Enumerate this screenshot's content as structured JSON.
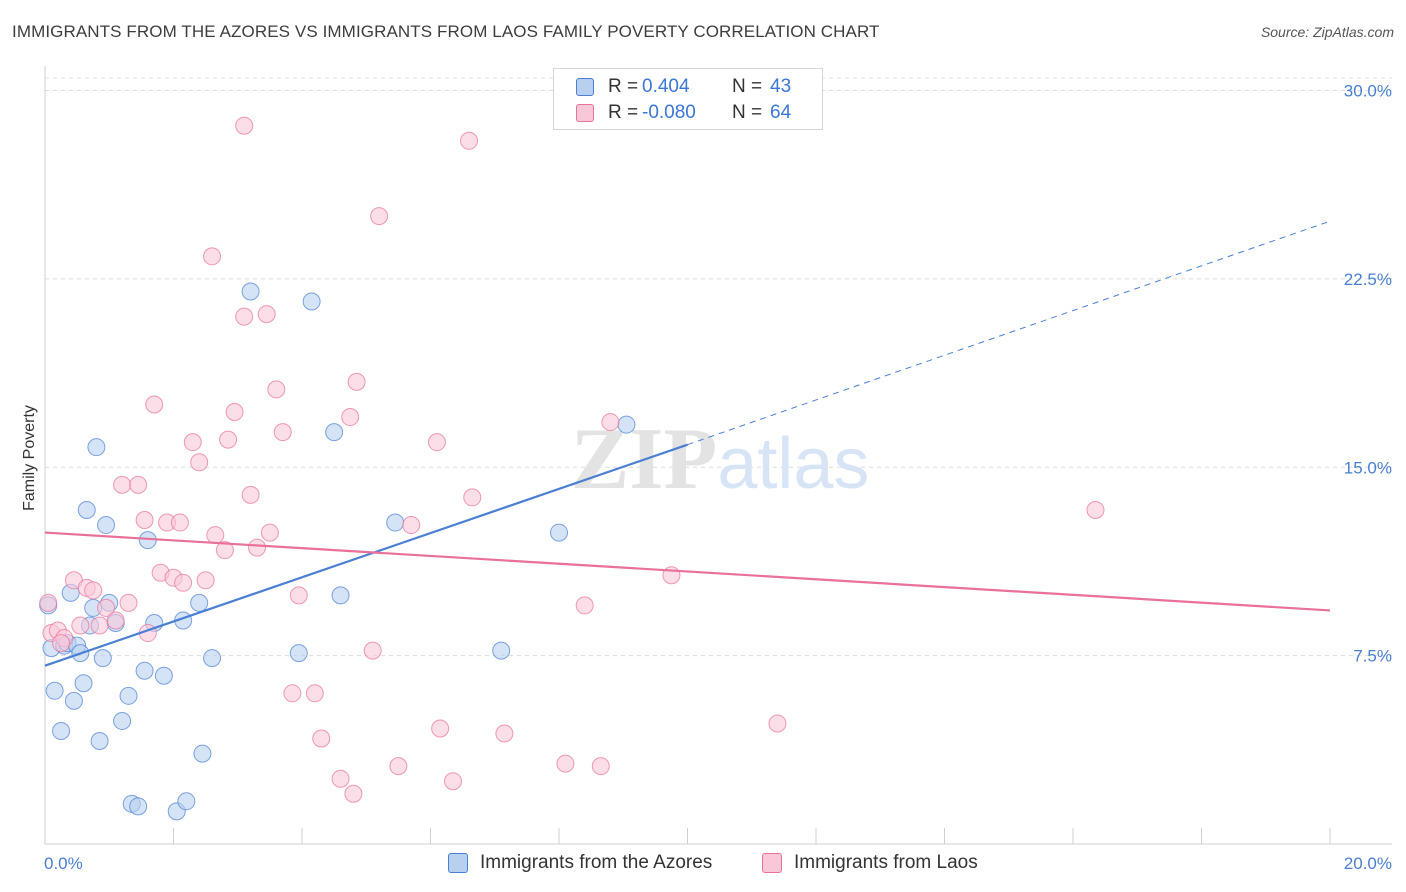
{
  "title": "IMMIGRANTS FROM THE AZORES VS IMMIGRANTS FROM LAOS FAMILY POVERTY CORRELATION CHART",
  "source": "Source: ZipAtlas.com",
  "colors": {
    "blue": "#4a7fd4",
    "blue_fill": "#b8d0f0",
    "pink": "#e8709a",
    "pink_fill": "#f8c8d8",
    "tick": "#4a7fcf"
  },
  "legend": {
    "rows": [
      {
        "r_label": "R =",
        "r_value": "0.404",
        "n_label": "N =",
        "n_value": "43"
      },
      {
        "r_label": "R =",
        "r_value": "-0.080",
        "n_label": "N =",
        "n_value": "64"
      }
    ]
  },
  "bottom_legend": [
    "Immigrants from the Azores",
    "Immigrants from Laos"
  ],
  "watermark": "ZIPatlas",
  "chart_data": {
    "type": "scatter",
    "title": "IMMIGRANTS FROM THE AZORES VS IMMIGRANTS FROM LAOS FAMILY POVERTY CORRELATION CHART",
    "xlabel": "",
    "ylabel": "Family Poverty",
    "xlim": [
      0,
      20
    ],
    "ylim": [
      0,
      30.5
    ],
    "x_tick_labels": [
      "0.0%",
      "20.0%"
    ],
    "y_ticks": [
      7.5,
      15.0,
      22.5,
      30.0
    ],
    "y_tick_labels": [
      "7.5%",
      "15.0%",
      "22.5%",
      "30.0%"
    ],
    "grid": true,
    "series": [
      {
        "name": "Immigrants from the Azores",
        "points": [
          [
            0.05,
            9.5
          ],
          [
            0.1,
            7.8
          ],
          [
            0.15,
            6.1
          ],
          [
            0.25,
            4.5
          ],
          [
            0.3,
            7.9
          ],
          [
            0.35,
            8.0
          ],
          [
            0.4,
            10.0
          ],
          [
            0.45,
            5.7
          ],
          [
            0.5,
            7.9
          ],
          [
            0.55,
            7.6
          ],
          [
            0.6,
            6.4
          ],
          [
            0.65,
            13.3
          ],
          [
            0.7,
            8.7
          ],
          [
            0.75,
            9.4
          ],
          [
            0.8,
            15.8
          ],
          [
            0.85,
            4.1
          ],
          [
            0.9,
            7.4
          ],
          [
            0.95,
            12.7
          ],
          [
            1.0,
            9.6
          ],
          [
            1.1,
            8.8
          ],
          [
            1.2,
            4.9
          ],
          [
            1.3,
            5.9
          ],
          [
            1.35,
            1.6
          ],
          [
            1.45,
            1.5
          ],
          [
            1.55,
            6.9
          ],
          [
            1.6,
            12.1
          ],
          [
            1.7,
            8.8
          ],
          [
            1.85,
            6.7
          ],
          [
            2.05,
            1.3
          ],
          [
            2.15,
            8.9
          ],
          [
            2.2,
            1.7
          ],
          [
            2.4,
            9.6
          ],
          [
            2.45,
            3.6
          ],
          [
            2.6,
            7.4
          ],
          [
            3.2,
            22.0
          ],
          [
            3.95,
            7.6
          ],
          [
            4.15,
            21.6
          ],
          [
            4.5,
            16.4
          ],
          [
            4.6,
            9.9
          ],
          [
            5.45,
            12.8
          ],
          [
            7.1,
            7.7
          ],
          [
            8.0,
            12.4
          ],
          [
            9.05,
            16.7
          ]
        ],
        "trend": {
          "x0": 0.0,
          "y0": 7.1,
          "x1": 10.0,
          "y1": 15.9,
          "dashed_to_x": 20.0,
          "dashed_to_y": 24.8
        }
      },
      {
        "name": "Immigrants from Laos",
        "points": [
          [
            0.05,
            9.6
          ],
          [
            0.1,
            8.4
          ],
          [
            0.2,
            8.5
          ],
          [
            0.3,
            8.2
          ],
          [
            0.45,
            10.5
          ],
          [
            0.55,
            8.7
          ],
          [
            0.65,
            10.2
          ],
          [
            0.75,
            10.1
          ],
          [
            0.85,
            8.7
          ],
          [
            0.95,
            9.4
          ],
          [
            1.1,
            8.9
          ],
          [
            1.2,
            14.3
          ],
          [
            1.3,
            9.6
          ],
          [
            1.45,
            14.3
          ],
          [
            1.55,
            12.9
          ],
          [
            1.6,
            8.4
          ],
          [
            1.7,
            17.5
          ],
          [
            1.8,
            10.8
          ],
          [
            1.9,
            12.8
          ],
          [
            2.0,
            10.6
          ],
          [
            2.1,
            12.8
          ],
          [
            2.15,
            10.4
          ],
          [
            2.3,
            16.0
          ],
          [
            2.4,
            15.2
          ],
          [
            2.5,
            10.5
          ],
          [
            2.6,
            23.4
          ],
          [
            2.65,
            12.3
          ],
          [
            2.8,
            11.7
          ],
          [
            2.85,
            16.1
          ],
          [
            2.95,
            17.2
          ],
          [
            3.1,
            28.6
          ],
          [
            3.1,
            21.0
          ],
          [
            3.2,
            13.9
          ],
          [
            3.3,
            11.8
          ],
          [
            3.45,
            21.1
          ],
          [
            3.5,
            12.4
          ],
          [
            3.6,
            18.1
          ],
          [
            3.7,
            16.4
          ],
          [
            3.85,
            6.0
          ],
          [
            3.95,
            9.9
          ],
          [
            4.2,
            6.0
          ],
          [
            4.3,
            4.2
          ],
          [
            4.6,
            2.6
          ],
          [
            4.75,
            17.0
          ],
          [
            4.8,
            2.0
          ],
          [
            4.85,
            18.4
          ],
          [
            5.1,
            7.7
          ],
          [
            5.2,
            25.0
          ],
          [
            5.5,
            3.1
          ],
          [
            5.7,
            12.7
          ],
          [
            6.1,
            16.0
          ],
          [
            6.15,
            4.6
          ],
          [
            6.35,
            2.5
          ],
          [
            6.6,
            28.0
          ],
          [
            6.65,
            13.8
          ],
          [
            7.15,
            4.4
          ],
          [
            8.1,
            3.2
          ],
          [
            8.4,
            9.5
          ],
          [
            8.65,
            3.1
          ],
          [
            8.8,
            16.8
          ],
          [
            9.75,
            10.7
          ],
          [
            11.4,
            4.8
          ],
          [
            16.35,
            13.3
          ],
          [
            0.25,
            8.0
          ]
        ],
        "trend": {
          "x0": 0.0,
          "y0": 12.4,
          "x1": 20.0,
          "y1": 9.3
        }
      }
    ]
  }
}
